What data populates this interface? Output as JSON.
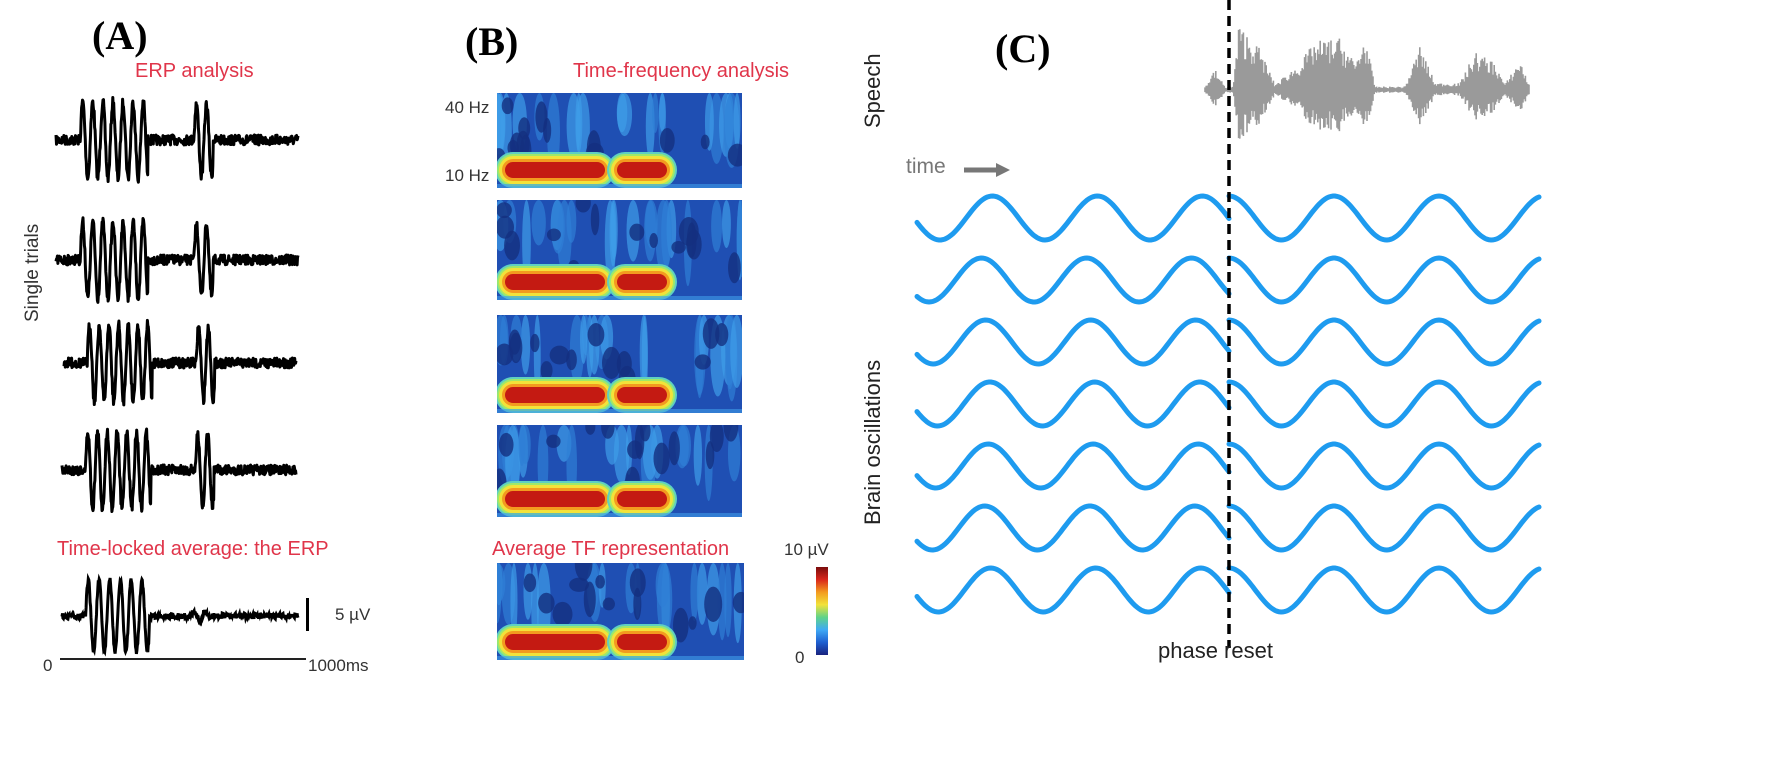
{
  "panels": {
    "A": {
      "label": "(A)",
      "title": "ERP analysis",
      "ylabel": "Single trials",
      "trial_count": 4,
      "average_title": "Time-locked average: the ERP",
      "scale_bar_label": "5 µV",
      "time_axis": {
        "start": "0",
        "end": "1000ms"
      },
      "trace_color": "#000000",
      "title_color": "#e0354a"
    },
    "B": {
      "label": "(B)",
      "title": "Time-frequency analysis",
      "freq_labels": {
        "high": "40 Hz",
        "low": "10 Hz"
      },
      "trial_count": 4,
      "average_title": "Average TF representation",
      "colorbar": {
        "max": "10 µV",
        "min": "0",
        "colors": [
          "#1a237e",
          "#1e5fd0",
          "#3fa9f5",
          "#5fd38a",
          "#f2e23a",
          "#f39a1f",
          "#d9261c",
          "#7a0c0c"
        ]
      }
    },
    "C": {
      "label": "(C)",
      "speech_label": "Speech",
      "time_label": "time",
      "oscillation_label": "Brain oscillations",
      "oscillation_count": 7,
      "reset_label": "phase reset",
      "wave_color": "#1e9bef",
      "speech_color": "#9a9a9a"
    }
  }
}
